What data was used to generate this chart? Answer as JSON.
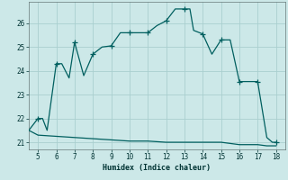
{
  "xlabel": "Humidex (Indice chaleur)",
  "bg_color": "#cce8e8",
  "grid_color": "#aacfcf",
  "line_color": "#005f5f",
  "marker_color": "#005f5f",
  "x_main": [
    4.5,
    5.0,
    5.25,
    5.5,
    6.0,
    6.3,
    6.7,
    7.0,
    7.5,
    8.0,
    8.5,
    9.0,
    9.5,
    10.0,
    10.5,
    11.0,
    11.5,
    12.0,
    12.5,
    13.0,
    13.3,
    13.5,
    14.0,
    14.5,
    15.0,
    15.5,
    16.0,
    16.5,
    17.0,
    17.5,
    17.8,
    18.0
  ],
  "y_main": [
    21.5,
    22.0,
    22.0,
    21.5,
    24.3,
    24.3,
    23.7,
    25.2,
    23.8,
    24.7,
    25.0,
    25.05,
    25.6,
    25.6,
    25.6,
    25.6,
    25.9,
    26.1,
    26.6,
    26.6,
    26.6,
    25.7,
    25.55,
    24.7,
    25.3,
    25.3,
    23.55,
    23.55,
    23.55,
    21.2,
    21.0,
    21.0
  ],
  "x_low": [
    4.5,
    5.0,
    6.0,
    7.0,
    8.0,
    9.0,
    10.0,
    11.0,
    12.0,
    13.0,
    14.0,
    15.0,
    15.5,
    16.0,
    17.0,
    17.5,
    18.0
  ],
  "y_low": [
    21.5,
    21.3,
    21.25,
    21.2,
    21.15,
    21.1,
    21.05,
    21.05,
    21.0,
    21.0,
    21.0,
    21.0,
    20.95,
    20.9,
    20.9,
    20.85,
    20.85
  ],
  "marker_x": [
    5.0,
    6.0,
    7.0,
    8.0,
    9.0,
    10.0,
    11.0,
    12.0,
    13.0,
    14.0,
    15.0,
    16.0,
    17.0,
    18.0
  ],
  "marker_y": [
    22.0,
    24.3,
    25.2,
    24.7,
    25.05,
    25.6,
    25.6,
    26.1,
    26.6,
    25.55,
    25.3,
    23.55,
    23.55,
    21.0
  ],
  "xlim": [
    4.5,
    18.5
  ],
  "ylim": [
    20.7,
    26.9
  ],
  "xticks": [
    5,
    6,
    7,
    8,
    9,
    10,
    11,
    12,
    13,
    14,
    15,
    16,
    17,
    18
  ],
  "yticks": [
    21,
    22,
    23,
    24,
    25,
    26
  ]
}
